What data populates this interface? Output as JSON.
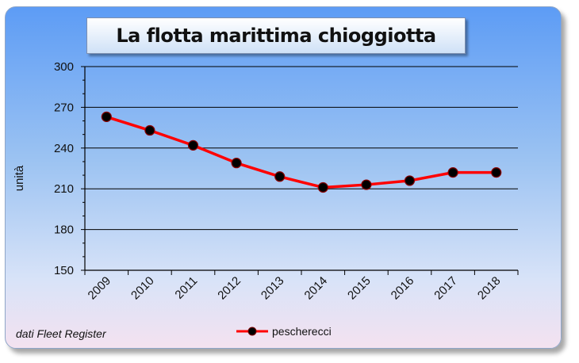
{
  "chart_data": {
    "type": "line",
    "title": "La flotta marittima chioggiotta",
    "ylabel": "unità",
    "xlabel": "",
    "categories": [
      "2009",
      "2010",
      "2011",
      "2012",
      "2013",
      "2014",
      "2015",
      "2016",
      "2017",
      "2018"
    ],
    "series": [
      {
        "name": "pescherecci",
        "values": [
          263,
          253,
          242,
          229,
          219,
          211,
          213,
          216,
          222,
          222
        ],
        "color": "#ff0000"
      }
    ],
    "ylim": [
      150,
      300
    ],
    "yticks": [
      "150",
      "180",
      "210",
      "240",
      "270",
      "300"
    ],
    "grid": true,
    "legend": "bottom"
  },
  "source": "dati Fleet Register"
}
